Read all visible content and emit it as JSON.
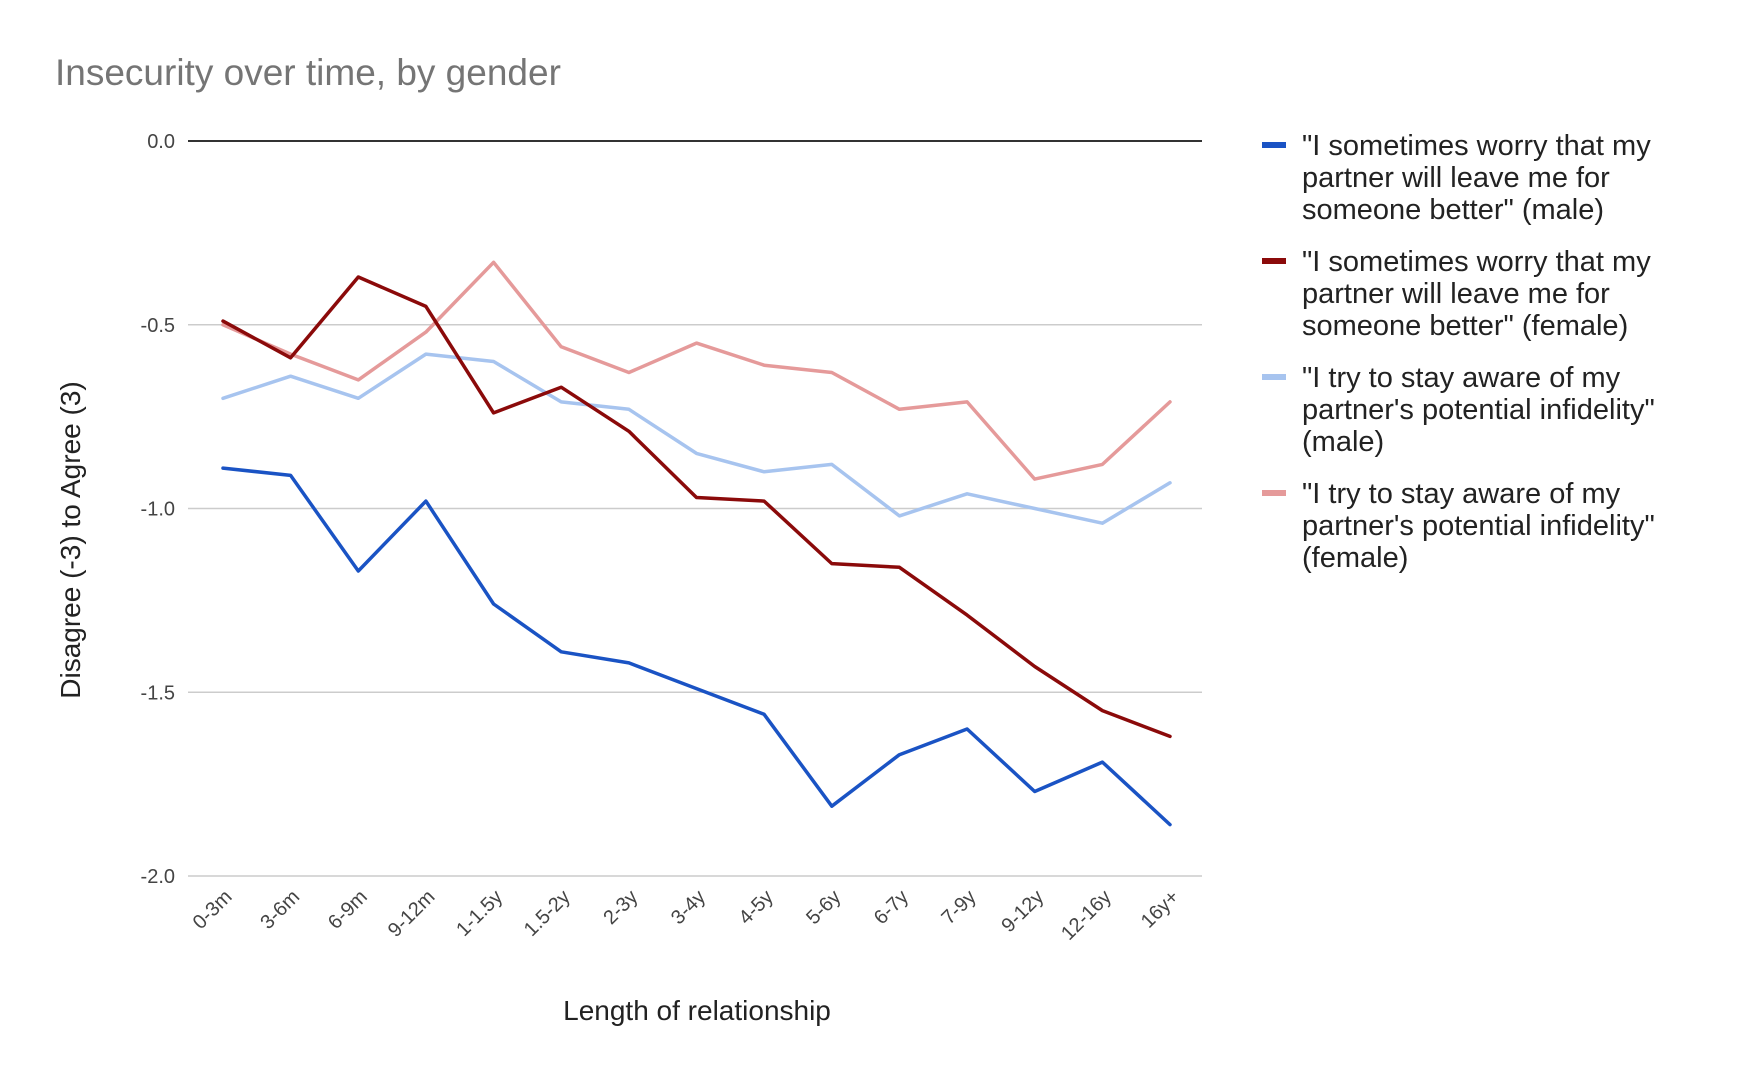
{
  "chart_data": {
    "type": "line",
    "title": "Insecurity over time, by gender",
    "xlabel": "Length of relationship",
    "ylabel": "Disagree (-3) to Agree (3)",
    "ylim": [
      -2.0,
      0.0
    ],
    "yticks": [
      "0.0",
      "-0.5",
      "-1.0",
      "-1.5",
      "-2.0"
    ],
    "grid": true,
    "legend_position": "right",
    "categories": [
      "0-3m",
      "3-6m",
      "6-9m",
      "9-12m",
      "1-1.5y",
      "1.5-2y",
      "2-3y",
      "3-4y",
      "4-5y",
      "5-6y",
      "6-7y",
      "7-9y",
      "9-12y",
      "12-16y",
      "16y+"
    ],
    "series": [
      {
        "name": "\"I sometimes worry that my partner will leave me for someone better\" (male)",
        "legend_lines": [
          "\"I sometimes worry that my",
          "partner will leave me for",
          "someone better\" (male)"
        ],
        "color": "#1a53c4",
        "values": [
          -0.89,
          -0.91,
          -1.17,
          -0.98,
          -1.26,
          -1.39,
          -1.42,
          -1.49,
          -1.56,
          -1.81,
          -1.67,
          -1.6,
          -1.77,
          -1.69,
          -1.86
        ]
      },
      {
        "name": "\"I sometimes worry that my partner will leave me for someone better\" (female)",
        "legend_lines": [
          "\"I sometimes worry that my",
          "partner will leave me for",
          "someone better\" (female)"
        ],
        "color": "#8b0a0a",
        "values": [
          -0.49,
          -0.59,
          -0.37,
          -0.45,
          -0.74,
          -0.67,
          -0.79,
          -0.97,
          -0.98,
          -1.15,
          -1.16,
          -1.29,
          -1.43,
          -1.55,
          -1.62
        ]
      },
      {
        "name": "\"I try to stay aware of my partner's potential infidelity\" (male)",
        "legend_lines": [
          "\"I try to stay aware of my",
          "partner's potential infidelity\"",
          "(male)"
        ],
        "color": "#a7c4ef",
        "values": [
          -0.7,
          -0.64,
          -0.7,
          -0.58,
          -0.6,
          -0.71,
          -0.73,
          -0.85,
          -0.9,
          -0.88,
          -1.02,
          -0.96,
          -1.0,
          -1.04,
          -0.93
        ]
      },
      {
        "name": "\"I try to stay aware of my partner's potential infidelity\" (female)",
        "legend_lines": [
          "\"I try to stay aware of my",
          "partner's potential infidelity\"",
          "(female)"
        ],
        "color": "#e59a9a",
        "values": [
          -0.5,
          -0.58,
          -0.65,
          -0.52,
          -0.33,
          -0.56,
          -0.63,
          -0.55,
          -0.61,
          -0.63,
          -0.73,
          -0.71,
          -0.92,
          -0.88,
          -0.71
        ]
      }
    ]
  }
}
